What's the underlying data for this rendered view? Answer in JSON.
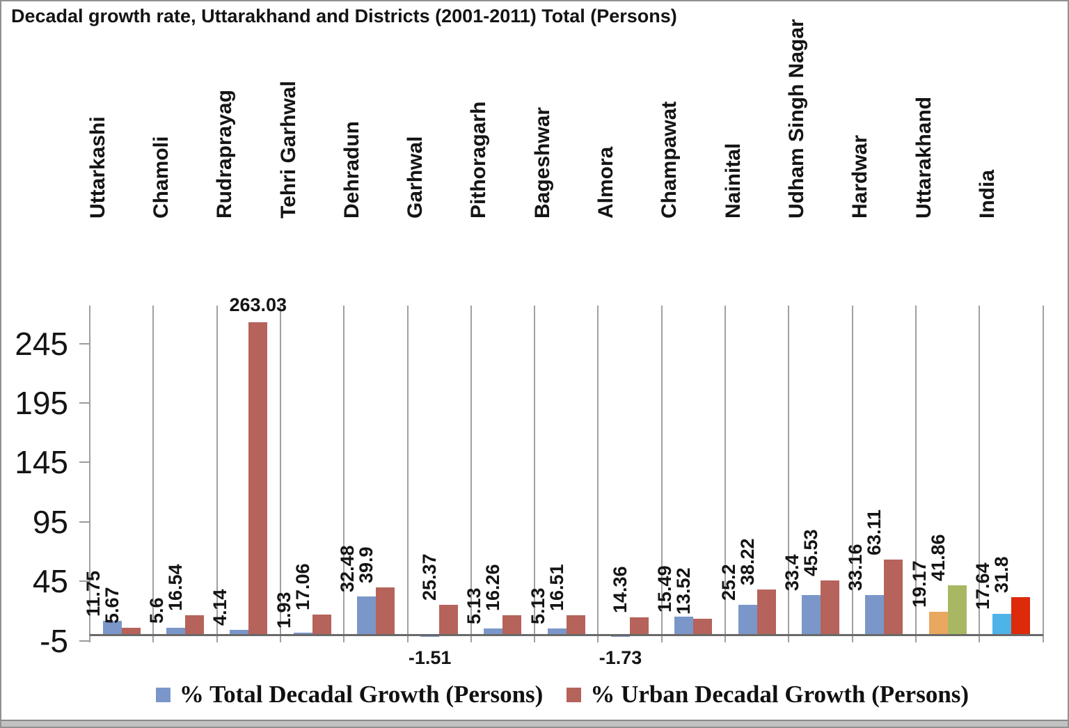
{
  "title": "Decadal growth rate, Uttarakhand and Districts (2001-2011) Total (Persons)",
  "chart_data": {
    "type": "bar",
    "title": "Decadal growth rate, Uttarakhand and Districts (2001-2011) Total (Persons)",
    "categories": [
      "Uttarkashi",
      "Chamoli",
      "Rudraprayag",
      "Tehri Garhwal",
      "Dehradun",
      "Garhwal",
      "Pithoragarh",
      "Bageshwar",
      "Almora",
      "Champawat",
      "Nainital",
      "Udham Singh Nagar",
      "Hardwar",
      "Uttarakhand",
      "India"
    ],
    "series": [
      {
        "name": "% Total Decadal Growth (Persons)",
        "color": "#7b97c9",
        "values": [
          11.75,
          5.6,
          4.14,
          1.93,
          32.48,
          -1.51,
          5.13,
          5.13,
          -1.73,
          15.49,
          25.2,
          33.4,
          33.16,
          19.17,
          17.64
        ]
      },
      {
        "name": "% Urban Decadal Growth (Persons)",
        "color": "#b5635b",
        "values": [
          5.67,
          16.54,
          263.03,
          17.06,
          39.9,
          25.37,
          16.26,
          16.51,
          14.36,
          13.52,
          38.22,
          45.53,
          63.11,
          41.86,
          31.8
        ]
      }
    ],
    "color_overrides": {
      "Uttarakhand": [
        "#e9a75f",
        "#a8b862"
      ],
      "India": [
        "#4db3e8",
        "#dc2a0b"
      ]
    },
    "y_ticks": [
      -5,
      45,
      95,
      145,
      195,
      245
    ],
    "ylim": [
      -12,
      277
    ],
    "grid": "vertical category separators only, no horizontal gridlines",
    "legend_position": "bottom",
    "data_label_style": "values rotated 90deg above bars; negative values horizontal below axis; 263.03 horizontal above bar",
    "axis_colors": {
      "grid": "#a0a0a0",
      "baseline": "#696969",
      "tick": "#9b9b9b",
      "text": "#141414"
    }
  },
  "legend": {
    "items": [
      {
        "label": "% Total Decadal Growth (Persons)",
        "color": "#7b97c9"
      },
      {
        "label": "% Urban Decadal Growth (Persons)",
        "color": "#b5635b"
      }
    ]
  }
}
